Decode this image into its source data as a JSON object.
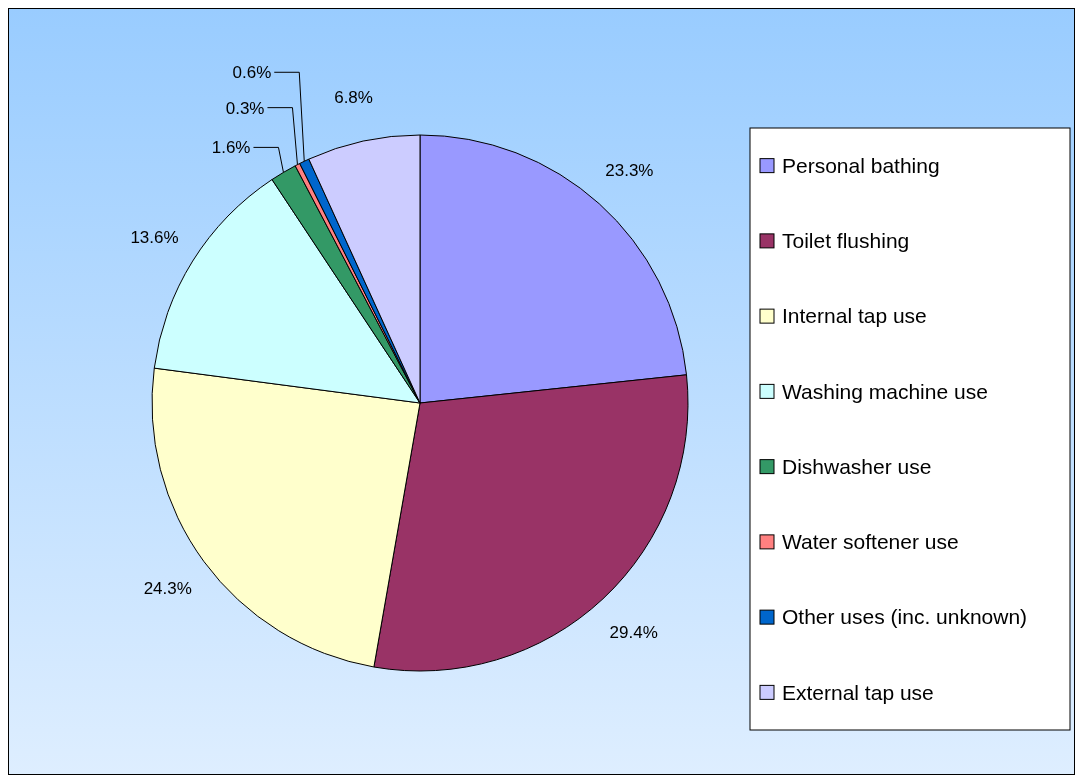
{
  "chart_data": {
    "type": "pie",
    "categories": [
      "Personal bathing",
      "Toilet flushing",
      "Internal tap use",
      "Washing machine use",
      "Dishwasher use",
      "Water softener use",
      "Other uses (inc. unknown)",
      "External tap use"
    ],
    "values": [
      23.3,
      29.4,
      24.3,
      13.6,
      1.6,
      0.3,
      0.6,
      6.8
    ],
    "value_labels": [
      "23.3%",
      "29.4%",
      "24.3%",
      "13.6%",
      "1.6%",
      "0.3%",
      "0.6%",
      "6.8%"
    ],
    "colors": [
      "#9999ff",
      "#993366",
      "#ffffcc",
      "#ccffff",
      "#339966",
      "#ff8080",
      "#0066cc",
      "#ccccff"
    ],
    "legend": "right"
  }
}
